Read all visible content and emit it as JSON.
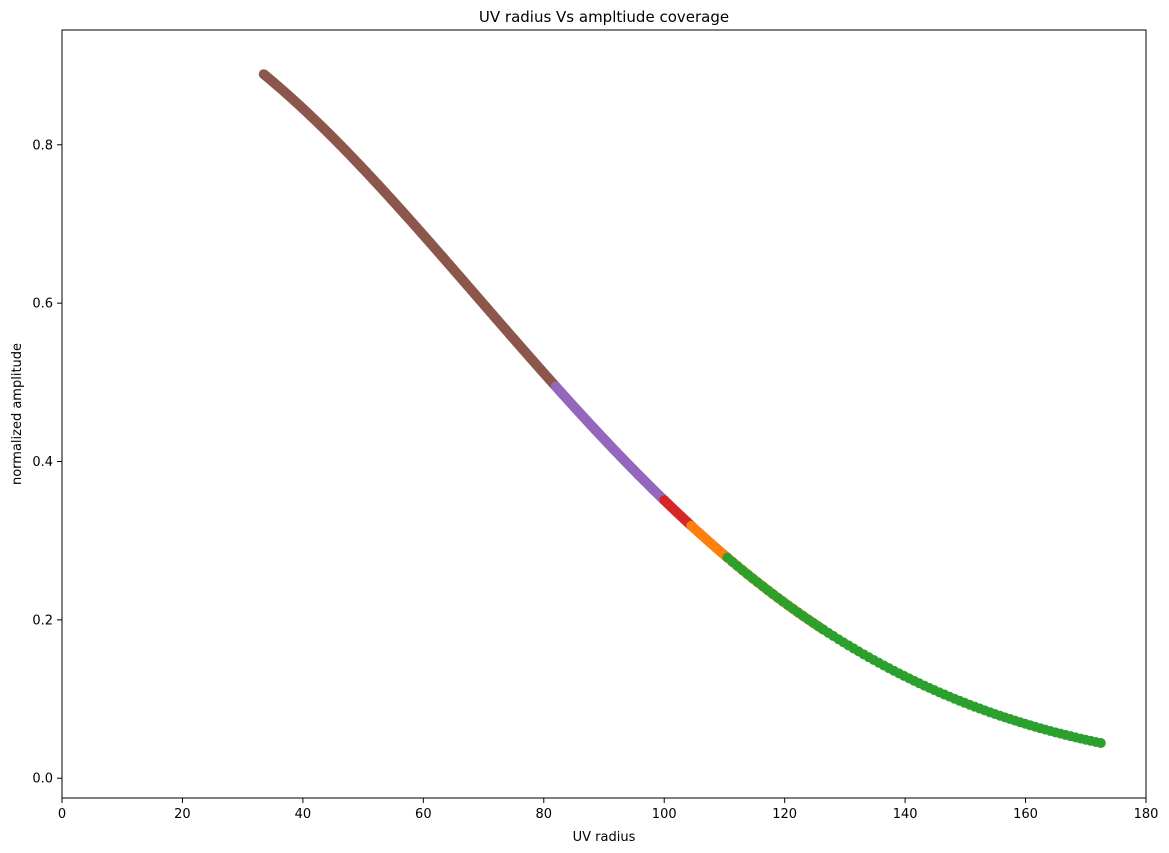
{
  "chart_data": {
    "type": "scatter",
    "title": "UV radius Vs ampltiude coverage",
    "xlabel": "UV radius",
    "ylabel": "normalized amplitude",
    "xlim": [
      0,
      180
    ],
    "ylim": [
      -0.025,
      0.945
    ],
    "xticks": [
      "0",
      "20",
      "40",
      "60",
      "80",
      "100",
      "120",
      "140",
      "160",
      "180"
    ],
    "yticks": [
      "0.0",
      "0.2",
      "0.4",
      "0.6",
      "0.8"
    ],
    "grid": false,
    "legend": "none",
    "series": [
      {
        "color": "#8c564b",
        "x_range": [
          33.5,
          82.0
        ],
        "count": 260
      },
      {
        "color": "#9467bd",
        "x_range": [
          82.0,
          100.0
        ],
        "count": 110
      },
      {
        "color": "#d62728",
        "x_range": [
          100.0,
          104.5
        ],
        "count": 22
      },
      {
        "color": "#ff7f0e",
        "x_range": [
          104.5,
          126.5
        ],
        "count": 60
      },
      {
        "color": "#2ca02c",
        "x_range": [
          110.5,
          172.5
        ],
        "count": 75
      }
    ]
  }
}
